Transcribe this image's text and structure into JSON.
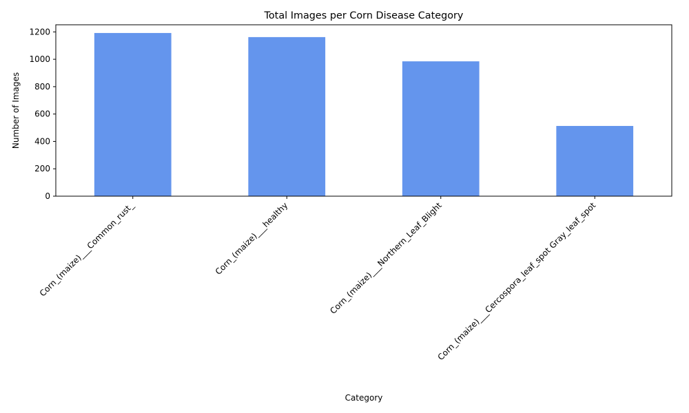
{
  "chart_data": {
    "type": "bar",
    "title": "Total Images per Corn Disease Category",
    "xlabel": "Category",
    "ylabel": "Number of Images",
    "categories": [
      "Corn_(maize)___Common_rust_",
      "Corn_(maize)___healthy",
      "Corn_(maize)___Northern_Leaf_Blight",
      "Corn_(maize)___Cercospora_leaf_spot Gray_leaf_spot"
    ],
    "values": [
      1192,
      1162,
      985,
      513
    ],
    "ylim": [
      0,
      1252
    ],
    "yticks": [
      0,
      200,
      400,
      600,
      800,
      1000,
      1200
    ],
    "bar_color": "#6495ED",
    "grid": false,
    "legend": "none"
  }
}
